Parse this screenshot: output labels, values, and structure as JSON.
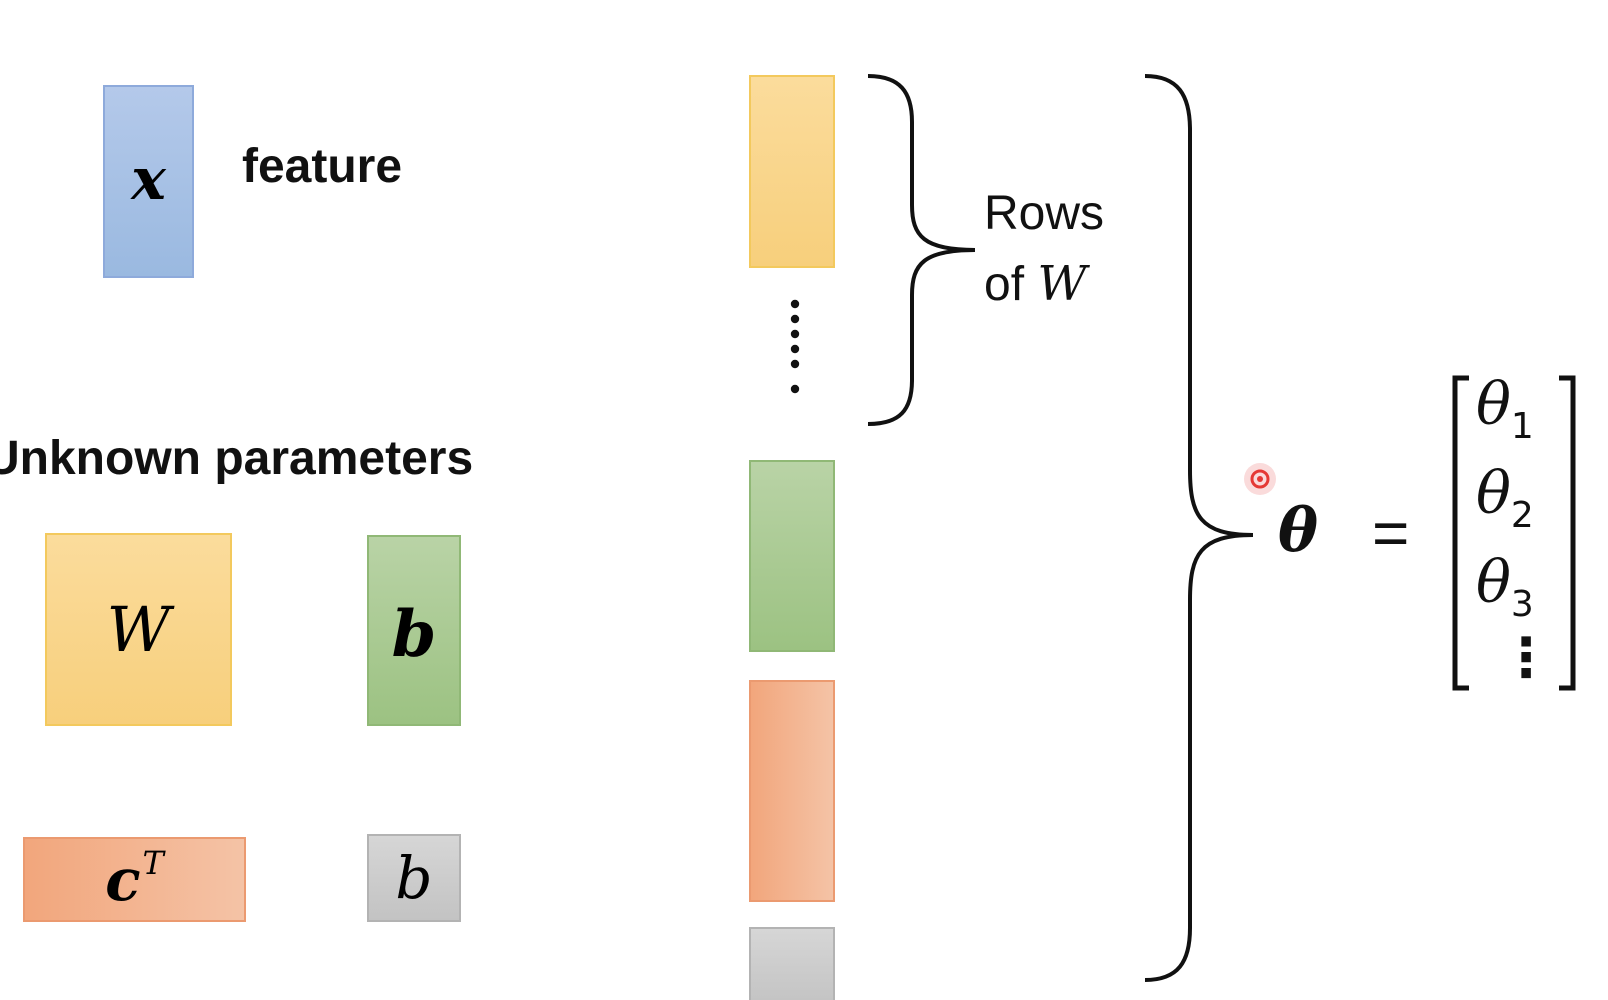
{
  "labels": {
    "x": "x",
    "feature": "feature",
    "unknown_parameters": "Unknown parameters",
    "W": "W",
    "b_vector": "b",
    "c": "c",
    "c_superscript": "T",
    "b_scalar": "b",
    "rows_line1": "Rows",
    "rows_line2_prefix": "of ",
    "rows_line2_var": "W",
    "theta": "θ",
    "equals": "=",
    "theta_entries": [
      {
        "symbol": "θ",
        "index": "1"
      },
      {
        "symbol": "θ",
        "index": "2"
      },
      {
        "symbol": "θ",
        "index": "3"
      }
    ],
    "vertical_ellipsis": "⋮"
  },
  "colors": {
    "feature_block": "#a4c0e4",
    "W_block": "#f9d58a",
    "b_block": "#aacb93",
    "c_block": "#f3b38e",
    "scalar_b_block": "#cccccc",
    "pointer": "#e53935"
  }
}
